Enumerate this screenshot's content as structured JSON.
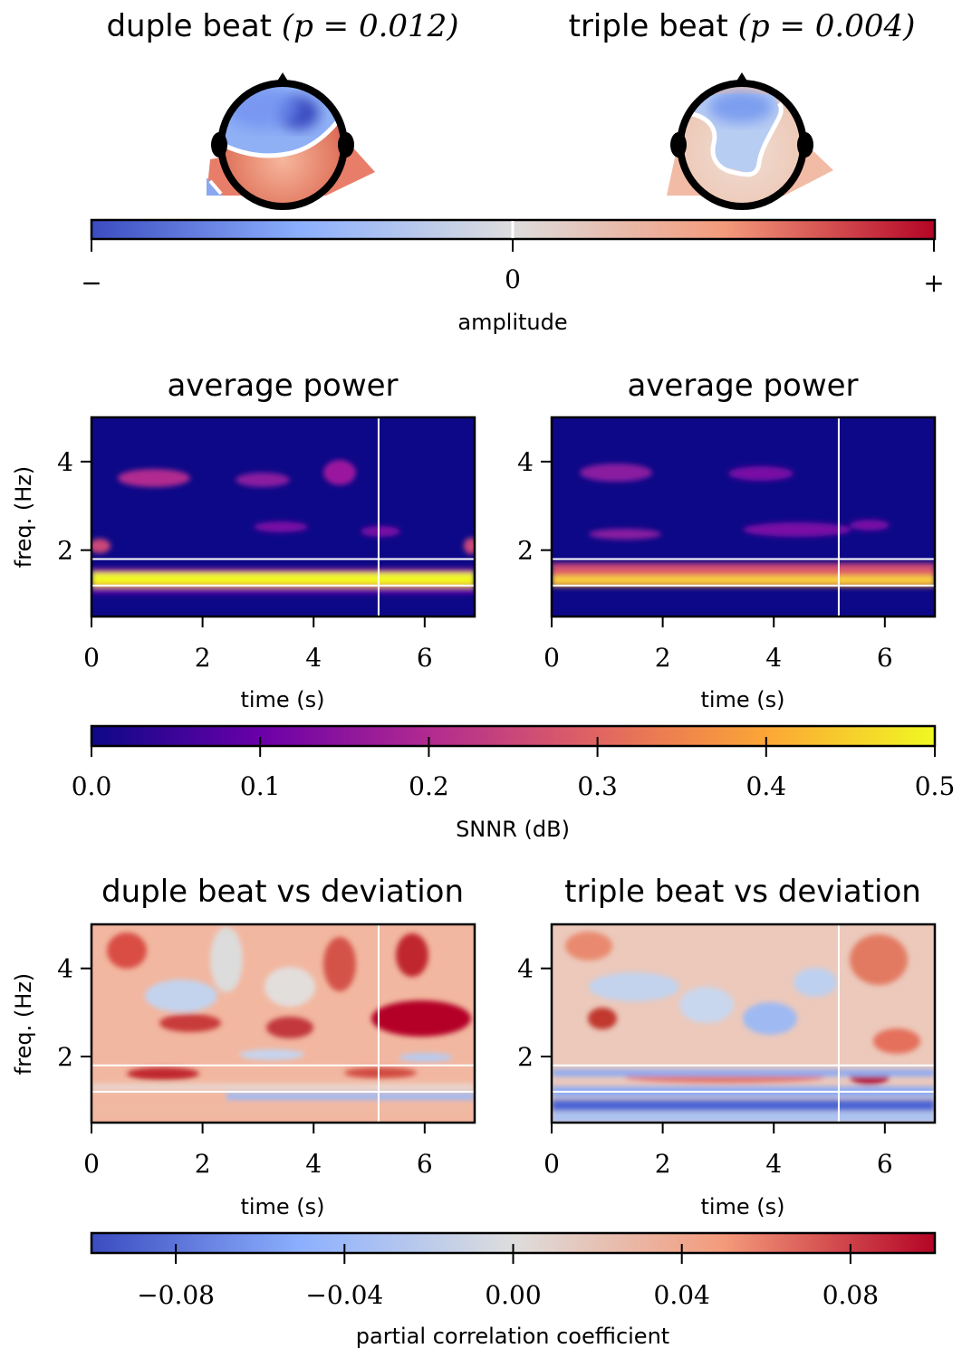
{
  "chart_data": [
    {
      "type": "heatmap",
      "subtype": "topomap",
      "title": "duple beat (p = 0.012)",
      "title_text": "duple beat",
      "p_text": "(p = 0.012)",
      "colormap": "coolwarm",
      "contour": "white"
    },
    {
      "type": "heatmap",
      "subtype": "topomap",
      "title": "triple beat (p = 0.004)",
      "title_text": "triple beat",
      "p_text": "(p = 0.004)",
      "colormap": "coolwarm",
      "contour": "white"
    },
    {
      "type": "colorbar",
      "label": "amplitude",
      "colormap": "coolwarm",
      "ticks": [
        "−",
        "0",
        "+"
      ],
      "marker_value": 0
    },
    {
      "type": "heatmap",
      "title": "average power",
      "xlabel": "time (s)",
      "ylabel": "freq. (Hz)",
      "xlim": [
        0,
        6.9
      ],
      "ylim": [
        0.5,
        5.0
      ],
      "xticks": [
        "0",
        "2",
        "4",
        "6"
      ],
      "yticks": [
        "2",
        "4"
      ],
      "xtick_values": [
        0,
        2,
        4,
        6
      ],
      "ytick_values": [
        2,
        4
      ],
      "colormap": "plasma",
      "vertical_line_time": 5.17,
      "horizontal_lines_freq": [
        1.2,
        1.8
      ],
      "bands": [
        {
          "freq": 1.35,
          "value": 0.5
        },
        {
          "freq": 1.2,
          "value": 0.22
        },
        {
          "freq": 3.6,
          "value": 0.13
        },
        {
          "freq": 2.4,
          "value": 0.1
        },
        {
          "freq": 2.1,
          "value": 0.14
        }
      ]
    },
    {
      "type": "heatmap",
      "title": "average power",
      "xlabel": "time (s)",
      "xlim": [
        0,
        6.9
      ],
      "ylim": [
        0.5,
        5.0
      ],
      "xticks": [
        "0",
        "2",
        "4",
        "6"
      ],
      "yticks": [
        "2",
        "4"
      ],
      "xtick_values": [
        0,
        2,
        4,
        6
      ],
      "ytick_values": [
        2,
        4
      ],
      "colormap": "plasma",
      "vertical_line_time": 5.17,
      "horizontal_lines_freq": [
        1.2,
        1.8
      ],
      "bands": [
        {
          "freq": 1.35,
          "value": 0.45
        },
        {
          "freq": 1.6,
          "value": 0.3
        },
        {
          "freq": 3.6,
          "value": 0.11
        },
        {
          "freq": 2.4,
          "value": 0.09
        }
      ]
    },
    {
      "type": "colorbar",
      "label": "SNNR (dB)",
      "colormap": "plasma",
      "range": [
        0.0,
        0.5
      ],
      "ticks": [
        "0.0",
        "0.1",
        "0.2",
        "0.3",
        "0.4",
        "0.5"
      ],
      "tick_values": [
        0.0,
        0.1,
        0.2,
        0.3,
        0.4,
        0.5
      ]
    },
    {
      "type": "heatmap",
      "title": "duple beat vs deviation",
      "xlabel": "time (s)",
      "ylabel": "freq. (Hz)",
      "xlim": [
        0,
        6.9
      ],
      "ylim": [
        0.5,
        5.0
      ],
      "xticks": [
        "0",
        "2",
        "4",
        "6"
      ],
      "yticks": [
        "2",
        "4"
      ],
      "xtick_values": [
        0,
        2,
        4,
        6
      ],
      "ytick_values": [
        2,
        4
      ],
      "colormap": "coolwarm",
      "vertical_line_time": 5.17,
      "horizontal_lines_freq": [
        1.2,
        1.8
      ]
    },
    {
      "type": "heatmap",
      "title": "triple beat vs deviation",
      "xlabel": "time (s)",
      "xlim": [
        0,
        6.9
      ],
      "ylim": [
        0.5,
        5.0
      ],
      "xticks": [
        "0",
        "2",
        "4",
        "6"
      ],
      "yticks": [
        "2",
        "4"
      ],
      "xtick_values": [
        0,
        2,
        4,
        6
      ],
      "ytick_values": [
        2,
        4
      ],
      "colormap": "coolwarm",
      "vertical_line_time": 5.17,
      "horizontal_lines_freq": [
        1.2,
        1.8
      ]
    },
    {
      "type": "colorbar",
      "label": "partial correlation coefficient",
      "colormap": "coolwarm",
      "range": [
        -0.1,
        0.1
      ],
      "ticks": [
        "−0.08",
        "−0.04",
        "0.00",
        "0.04",
        "0.08"
      ],
      "tick_values": [
        -0.08,
        -0.04,
        0.0,
        0.04,
        0.08
      ]
    }
  ]
}
